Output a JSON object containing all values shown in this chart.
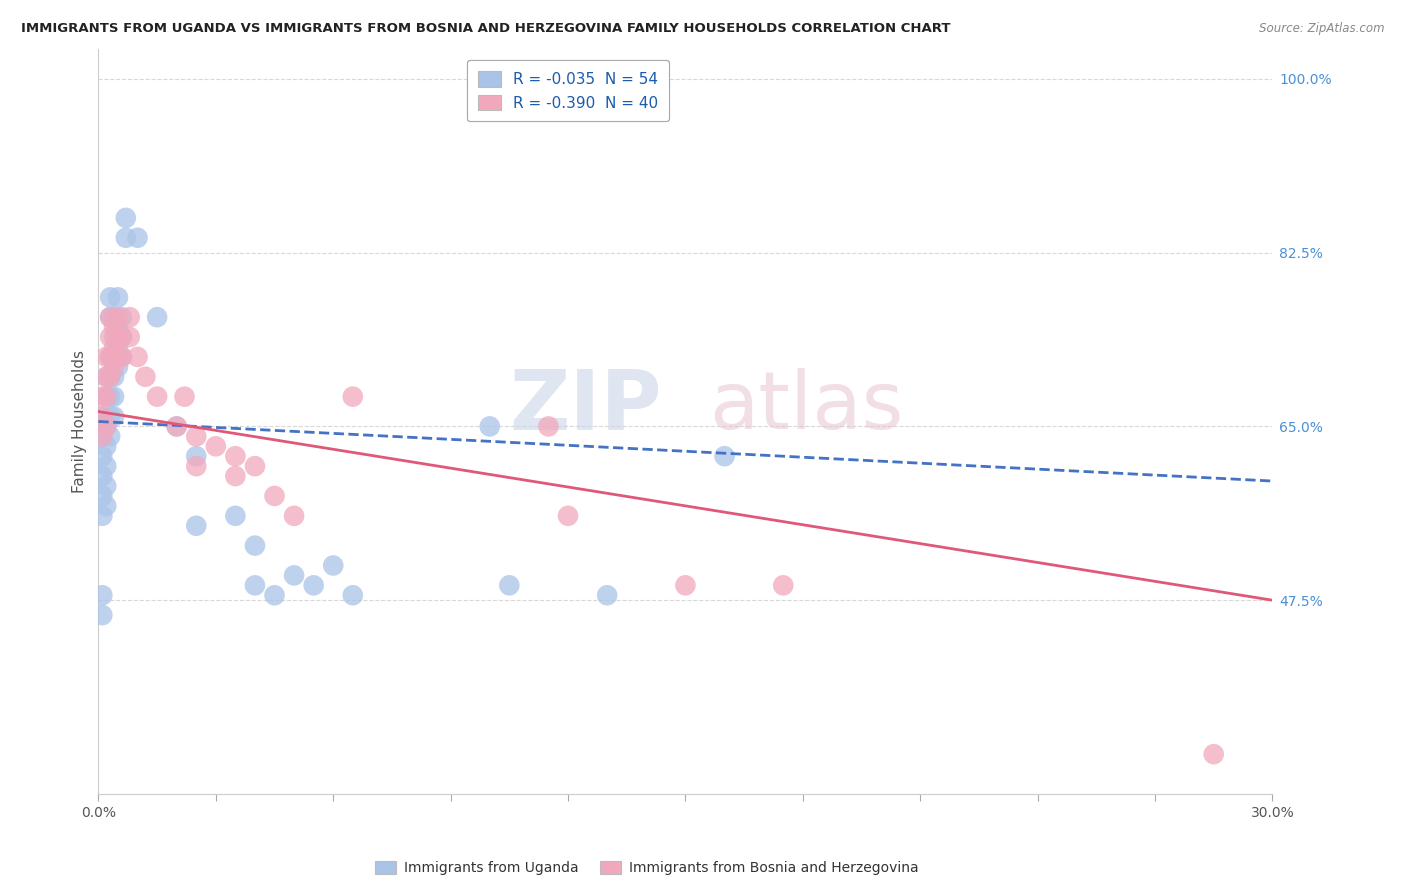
{
  "title": "IMMIGRANTS FROM UGANDA VS IMMIGRANTS FROM BOSNIA AND HERZEGOVINA FAMILY HOUSEHOLDS CORRELATION CHART",
  "source": "Source: ZipAtlas.com",
  "ylabel": "Family Households",
  "legend1_label": "R = -0.035  N = 54",
  "legend2_label": "R = -0.390  N = 40",
  "legend1_color": "#aac4e8",
  "legend2_color": "#f2a8bc",
  "line1_color": "#4472c4",
  "line2_color": "#e05878",
  "bg_color": "#ffffff",
  "xmin": 0.0,
  "xmax": 0.3,
  "ymin": 0.28,
  "ymax": 1.03,
  "ytick_vals": [
    0.475,
    0.65,
    0.825,
    1.0
  ],
  "ytick_labels": [
    "47.5%",
    "65.0%",
    "82.5%",
    "100.0%"
  ],
  "blue_scatter": [
    [
      0.001,
      0.66
    ],
    [
      0.001,
      0.64
    ],
    [
      0.001,
      0.62
    ],
    [
      0.001,
      0.6
    ],
    [
      0.001,
      0.58
    ],
    [
      0.001,
      0.56
    ],
    [
      0.001,
      0.48
    ],
    [
      0.001,
      0.46
    ],
    [
      0.002,
      0.7
    ],
    [
      0.002,
      0.68
    ],
    [
      0.002,
      0.65
    ],
    [
      0.002,
      0.63
    ],
    [
      0.002,
      0.61
    ],
    [
      0.002,
      0.59
    ],
    [
      0.002,
      0.57
    ],
    [
      0.003,
      0.78
    ],
    [
      0.003,
      0.76
    ],
    [
      0.003,
      0.72
    ],
    [
      0.003,
      0.7
    ],
    [
      0.003,
      0.68
    ],
    [
      0.003,
      0.66
    ],
    [
      0.003,
      0.64
    ],
    [
      0.004,
      0.76
    ],
    [
      0.004,
      0.74
    ],
    [
      0.004,
      0.72
    ],
    [
      0.004,
      0.7
    ],
    [
      0.004,
      0.68
    ],
    [
      0.004,
      0.66
    ],
    [
      0.005,
      0.78
    ],
    [
      0.005,
      0.75
    ],
    [
      0.005,
      0.73
    ],
    [
      0.005,
      0.71
    ],
    [
      0.006,
      0.76
    ],
    [
      0.006,
      0.74
    ],
    [
      0.006,
      0.72
    ],
    [
      0.007,
      0.86
    ],
    [
      0.007,
      0.84
    ],
    [
      0.01,
      0.84
    ],
    [
      0.015,
      0.76
    ],
    [
      0.02,
      0.65
    ],
    [
      0.025,
      0.62
    ],
    [
      0.025,
      0.55
    ],
    [
      0.035,
      0.56
    ],
    [
      0.04,
      0.53
    ],
    [
      0.04,
      0.49
    ],
    [
      0.045,
      0.48
    ],
    [
      0.05,
      0.5
    ],
    [
      0.055,
      0.49
    ],
    [
      0.06,
      0.51
    ],
    [
      0.065,
      0.48
    ],
    [
      0.1,
      0.65
    ],
    [
      0.105,
      0.49
    ],
    [
      0.13,
      0.48
    ],
    [
      0.16,
      0.62
    ]
  ],
  "pink_scatter": [
    [
      0.001,
      0.68
    ],
    [
      0.001,
      0.66
    ],
    [
      0.001,
      0.64
    ],
    [
      0.002,
      0.72
    ],
    [
      0.002,
      0.7
    ],
    [
      0.002,
      0.68
    ],
    [
      0.002,
      0.65
    ],
    [
      0.003,
      0.76
    ],
    [
      0.003,
      0.74
    ],
    [
      0.003,
      0.72
    ],
    [
      0.003,
      0.7
    ],
    [
      0.004,
      0.75
    ],
    [
      0.004,
      0.73
    ],
    [
      0.004,
      0.71
    ],
    [
      0.005,
      0.76
    ],
    [
      0.005,
      0.74
    ],
    [
      0.005,
      0.72
    ],
    [
      0.006,
      0.74
    ],
    [
      0.006,
      0.72
    ],
    [
      0.008,
      0.76
    ],
    [
      0.008,
      0.74
    ],
    [
      0.01,
      0.72
    ],
    [
      0.012,
      0.7
    ],
    [
      0.015,
      0.68
    ],
    [
      0.02,
      0.65
    ],
    [
      0.022,
      0.68
    ],
    [
      0.025,
      0.64
    ],
    [
      0.025,
      0.61
    ],
    [
      0.03,
      0.63
    ],
    [
      0.035,
      0.62
    ],
    [
      0.035,
      0.6
    ],
    [
      0.04,
      0.61
    ],
    [
      0.045,
      0.58
    ],
    [
      0.05,
      0.56
    ],
    [
      0.065,
      0.68
    ],
    [
      0.115,
      0.65
    ],
    [
      0.12,
      0.56
    ],
    [
      0.15,
      0.49
    ],
    [
      0.175,
      0.49
    ],
    [
      0.285,
      0.32
    ]
  ],
  "blue_line_x": [
    0.0,
    0.3
  ],
  "blue_line_y": [
    0.655,
    0.595
  ],
  "pink_line_x": [
    0.0,
    0.3
  ],
  "pink_line_y": [
    0.665,
    0.475
  ]
}
